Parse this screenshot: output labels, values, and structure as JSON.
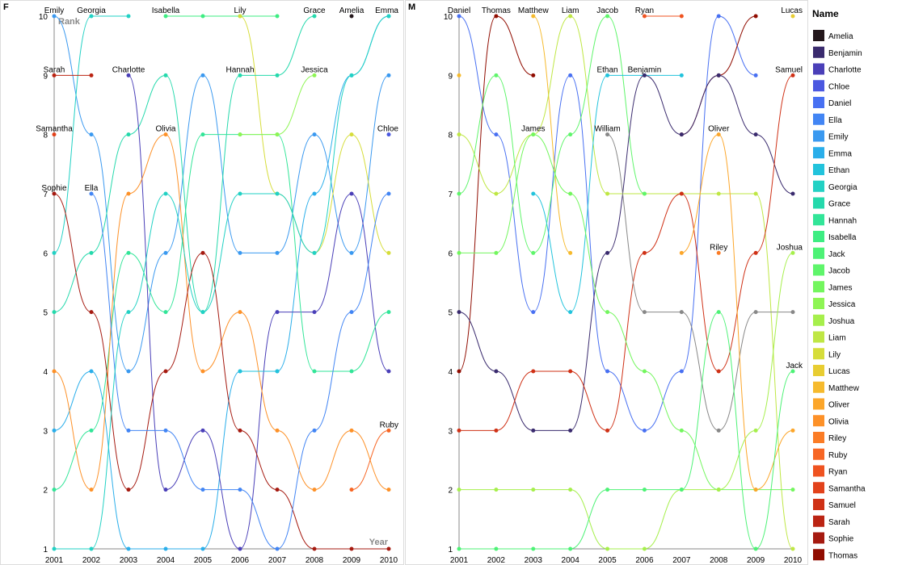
{
  "chart_data": {
    "type": "line",
    "x_axis_title": "Year",
    "y_axis_title": "Rank",
    "legend_title": "Name",
    "legend_position": "right",
    "x_ticks": [
      2001,
      2002,
      2003,
      2004,
      2005,
      2006,
      2007,
      2008,
      2009,
      2010
    ],
    "y_ticks": [
      1,
      2,
      3,
      4,
      5,
      6,
      7,
      8,
      9,
      10
    ],
    "ylim": [
      1,
      10
    ],
    "legend": [
      {
        "name": "Amelia",
        "color": "#23171b"
      },
      {
        "name": "Benjamin",
        "color": "#3a2b6e"
      },
      {
        "name": "Charlotte",
        "color": "#4a3fb8"
      },
      {
        "name": "Chloe",
        "color": "#4b58e0"
      },
      {
        "name": "Daniel",
        "color": "#4870f2"
      },
      {
        "name": "Ella",
        "color": "#4285f4"
      },
      {
        "name": "Emily",
        "color": "#3a99f0"
      },
      {
        "name": "Emma",
        "color": "#2aaeea"
      },
      {
        "name": "Ethan",
        "color": "#22c3dc"
      },
      {
        "name": "Georgia",
        "color": "#22d1c4"
      },
      {
        "name": "Grace",
        "color": "#25d9ac"
      },
      {
        "name": "Hannah",
        "color": "#32e598"
      },
      {
        "name": "Isabella",
        "color": "#3ded82"
      },
      {
        "name": "Jack",
        "color": "#4df276"
      },
      {
        "name": "Jacob",
        "color": "#5ff56b"
      },
      {
        "name": "James",
        "color": "#73f65e"
      },
      {
        "name": "Jessica",
        "color": "#8ef554"
      },
      {
        "name": "Joshua",
        "color": "#a6ef4c"
      },
      {
        "name": "Liam",
        "color": "#bfe744"
      },
      {
        "name": "Lily",
        "color": "#d6dd3a"
      },
      {
        "name": "Lucas",
        "color": "#e8cd32"
      },
      {
        "name": "Matthew",
        "color": "#f6ba2d"
      },
      {
        "name": "Oliver",
        "color": "#fca62a"
      },
      {
        "name": "Olivia",
        "color": "#fd9128"
      },
      {
        "name": "Riley",
        "color": "#fb7c26"
      },
      {
        "name": "Ruby",
        "color": "#f76624"
      },
      {
        "name": "Ryan",
        "color": "#ef5320"
      },
      {
        "name": "Samantha",
        "color": "#e2421b"
      },
      {
        "name": "Samuel",
        "color": "#cf3116"
      },
      {
        "name": "Sarah",
        "color": "#bb2413"
      },
      {
        "name": "Sophie",
        "color": "#a51a10"
      },
      {
        "name": "Thomas",
        "color": "#900c00"
      }
    ],
    "panels": [
      {
        "label": "F",
        "show_axis_titles": true,
        "series": [
          {
            "name": "Emily",
            "values": [
              10,
              8,
              4,
              6,
              9,
              6,
              6,
              8,
              6,
              9
            ]
          },
          {
            "name": "Georgia",
            "values": [
              6,
              10,
              10,
              null,
              null,
              null,
              null,
              null,
              null,
              null
            ]
          },
          {
            "name": "Isabella",
            "values": [
              null,
              null,
              null,
              10,
              10,
              10,
              10,
              null,
              null,
              null
            ]
          },
          {
            "name": "Lily",
            "values": [
              null,
              null,
              null,
              null,
              null,
              10,
              7,
              6,
              8,
              6
            ]
          },
          {
            "name": "Grace",
            "values": [
              5,
              6,
              8,
              9,
              5,
              9,
              9,
              10,
              null,
              null
            ]
          },
          {
            "name": "Amelia",
            "values": [
              null,
              null,
              null,
              null,
              null,
              null,
              null,
              null,
              10,
              null
            ]
          },
          {
            "name": "Emma",
            "values": [
              3,
              4,
              1,
              1,
              1,
              4,
              4,
              7,
              9,
              10
            ]
          },
          {
            "name": "Sarah",
            "values": [
              9,
              9,
              null,
              null,
              null,
              null,
              null,
              null,
              null,
              null
            ]
          },
          {
            "name": "Charlotte",
            "values": [
              null,
              null,
              9,
              2,
              3,
              1,
              5,
              5,
              7,
              4
            ]
          },
          {
            "name": "Hannah",
            "values": [
              2,
              3,
              6,
              5,
              8,
              8,
              8,
              4,
              4,
              5
            ]
          },
          {
            "name": "Jessica",
            "values": [
              null,
              null,
              null,
              null,
              null,
              8,
              8,
              9,
              null,
              null
            ]
          },
          {
            "name": "Samantha",
            "values": [
              8,
              null,
              null,
              null,
              null,
              null,
              null,
              null,
              null,
              null
            ]
          },
          {
            "name": "Olivia",
            "values": [
              4,
              2,
              7,
              8,
              4,
              5,
              3,
              2,
              3,
              2
            ]
          },
          {
            "name": "Chloe",
            "values": [
              null,
              null,
              null,
              null,
              null,
              null,
              null,
              null,
              null,
              8
            ]
          },
          {
            "name": "Sophie",
            "values": [
              7,
              5,
              2,
              4,
              6,
              3,
              2,
              1,
              1,
              1
            ]
          },
          {
            "name": "Ella",
            "values": [
              null,
              7,
              3,
              3,
              2,
              2,
              1,
              3,
              5,
              7
            ]
          },
          {
            "name": "Ruby",
            "values": [
              null,
              null,
              null,
              null,
              null,
              null,
              null,
              null,
              2,
              3
            ]
          },
          {
            "name": "Georgia (trend)",
            "values": [
              1,
              1,
              5,
              7,
              5,
              7,
              7,
              6,
              9,
              10
            ]
          },
          {
            "name": "Ethan",
            "values": [
              null,
              null,
              null,
              null,
              null,
              4,
              4,
              null,
              null,
              null
            ]
          }
        ]
      },
      {
        "label": "M",
        "show_axis_titles": false,
        "series": [
          {
            "name": "Daniel",
            "values": [
              10,
              8,
              5,
              9,
              4,
              3,
              4,
              10,
              9,
              null
            ]
          },
          {
            "name": "Thomas",
            "values": [
              4,
              10,
              9,
              null,
              null,
              null,
              8,
              9,
              10,
              null
            ]
          },
          {
            "name": "Matthew",
            "values": [
              9,
              null,
              10,
              6,
              null,
              null,
              null,
              null,
              null,
              null
            ]
          },
          {
            "name": "Liam",
            "values": [
              8,
              7,
              8,
              10,
              7,
              7,
              7,
              7,
              7,
              1
            ]
          },
          {
            "name": "Jacob",
            "values": [
              7,
              9,
              6,
              8,
              10,
              7,
              null,
              null,
              null,
              null
            ]
          },
          {
            "name": "Ryan",
            "values": [
              null,
              null,
              null,
              null,
              null,
              10,
              10,
              null,
              null,
              null
            ]
          },
          {
            "name": "Lucas",
            "values": [
              null,
              null,
              null,
              null,
              null,
              null,
              null,
              null,
              null,
              10
            ]
          },
          {
            "name": "Ethan",
            "values": [
              null,
              null,
              7,
              5,
              9,
              9,
              9,
              null,
              null,
              null
            ]
          },
          {
            "name": "Benjamin",
            "values": [
              5,
              4,
              3,
              3,
              6,
              9,
              8,
              9,
              8,
              7
            ]
          },
          {
            "name": "Samuel",
            "values": [
              3,
              3,
              4,
              4,
              3,
              6,
              7,
              4,
              6,
              9
            ]
          },
          {
            "name": "James",
            "values": [
              6,
              6,
              8,
              7,
              5,
              4,
              3,
              2,
              2,
              2
            ]
          },
          {
            "name": "William",
            "values": [
              null,
              null,
              null,
              null,
              8,
              5,
              5,
              3,
              5,
              5
            ]
          },
          {
            "name": "Oliver",
            "values": [
              null,
              null,
              null,
              null,
              null,
              null,
              6,
              8,
              2,
              3
            ]
          },
          {
            "name": "Riley",
            "values": [
              null,
              null,
              null,
              null,
              null,
              null,
              null,
              6,
              null,
              null
            ]
          },
          {
            "name": "Joshua",
            "values": [
              2,
              2,
              2,
              2,
              1,
              1,
              2,
              2,
              3,
              6
            ]
          },
          {
            "name": "Jack",
            "values": [
              1,
              1,
              1,
              1,
              2,
              2,
              2,
              5,
              1,
              4
            ]
          }
        ]
      }
    ],
    "name_labels_top": {
      "F": [
        [
          "Emily",
          2001
        ],
        [
          "Georgia",
          2002
        ],
        [
          "Isabella",
          2004
        ],
        [
          "Lily",
          2006
        ],
        [
          "Grace",
          2008
        ],
        [
          "Amelia",
          2009
        ],
        [
          "Emma",
          2010
        ],
        [
          "Sarah",
          2001,
          9
        ],
        [
          "Charlotte",
          2003,
          9
        ],
        [
          "Hannah",
          2006,
          9
        ],
        [
          "Jessica",
          2008,
          9
        ],
        [
          "Samantha",
          2001,
          8
        ],
        [
          "Olivia",
          2004,
          8
        ],
        [
          "Chloe",
          2010,
          8
        ],
        [
          "Sophie",
          2001,
          7
        ],
        [
          "Ella",
          2002,
          7
        ],
        [
          "Ruby",
          2010,
          3
        ]
      ],
      "M": [
        [
          "Daniel",
          2001
        ],
        [
          "Thomas",
          2002
        ],
        [
          "Matthew",
          2003
        ],
        [
          "Liam",
          2004
        ],
        [
          "Jacob",
          2005
        ],
        [
          "Ryan",
          2006
        ],
        [
          "Lucas",
          2010
        ],
        [
          "James",
          2003,
          8
        ],
        [
          "Ethan",
          2005,
          9
        ],
        [
          "Benjamin",
          2006,
          9
        ],
        [
          "William",
          2005,
          8
        ],
        [
          "Oliver",
          2008,
          8
        ],
        [
          "Samuel",
          2010,
          9
        ],
        [
          "Riley",
          2008,
          6
        ],
        [
          "Joshua",
          2010,
          6
        ],
        [
          "Jack",
          2010,
          4
        ]
      ]
    }
  }
}
